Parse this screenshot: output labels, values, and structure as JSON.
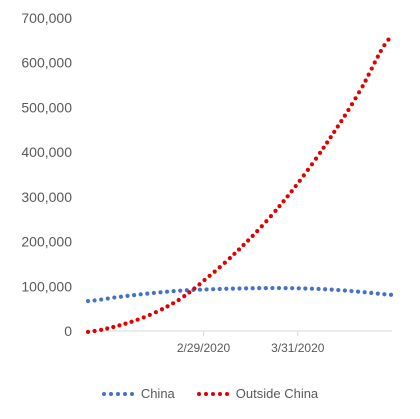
{
  "chart_data": {
    "type": "line",
    "title": "",
    "xlabel": "",
    "ylabel": "",
    "x_range": [
      "2020-01-22",
      "2020-05-01"
    ],
    "x_tick_labels": [
      "2/29/2020",
      "3/31/2020"
    ],
    "x_tick_dates": [
      "2020-02-29",
      "2020-03-31"
    ],
    "ylim": [
      0,
      700000
    ],
    "y_tick_values": [
      0,
      100000,
      200000,
      300000,
      400000,
      500000,
      600000,
      700000
    ],
    "y_tick_labels": [
      "0",
      "100,000",
      "200,000",
      "300,000",
      "400,000",
      "500,000",
      "600,000",
      "700,000"
    ],
    "grid": false,
    "legend_position": "bottom",
    "line_style": "dotted",
    "series": [
      {
        "name": "China",
        "color": "#4472C4",
        "x": [
          "2020-01-22",
          "2020-02-01",
          "2020-02-11",
          "2020-02-21",
          "2020-03-01",
          "2020-03-11",
          "2020-03-21",
          "2020-03-31",
          "2020-04-10",
          "2020-04-20",
          "2020-05-01"
        ],
        "values": [
          67000,
          76000,
          84000,
          90000,
          93000,
          95000,
          96000,
          95500,
          93000,
          88000,
          81000
        ]
      },
      {
        "name": "Outside China",
        "color": "#E00000",
        "x": [
          "2020-01-22",
          "2020-02-01",
          "2020-02-11",
          "2020-02-21",
          "2020-03-01",
          "2020-03-11",
          "2020-03-21",
          "2020-03-31",
          "2020-04-10",
          "2020-04-20",
          "2020-05-01"
        ],
        "values": [
          -2000,
          12000,
          35000,
          70000,
          118000,
          178000,
          248000,
          330000,
          425000,
          532000,
          660000
        ]
      }
    ]
  }
}
